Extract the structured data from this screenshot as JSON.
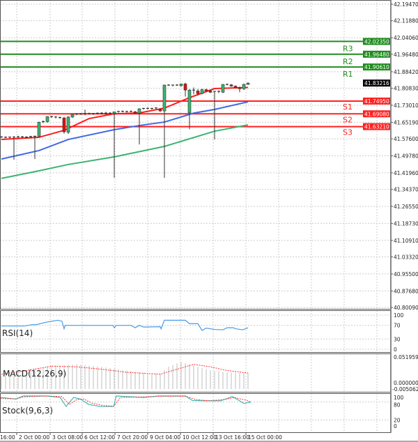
{
  "chart_data": [
    {
      "type": "candlestick",
      "ylim": [
        40.8009,
        42.1947
      ],
      "price_ticks": [
        "42.19470",
        "42.11880",
        "42.04060",
        "41.96480",
        "41.88420",
        "41.80830",
        "41.73010",
        "41.65190",
        "41.57600",
        "41.49780",
        "41.41960",
        "41.34370",
        "41.26550",
        "41.18730",
        "41.10910",
        "41.03320",
        "40.95500",
        "40.87680",
        "40.80090"
      ],
      "time_ticks": [
        "16:00",
        "2 Oct 00:00",
        "3 Oct 08:00",
        "6 Oct 12:00",
        "7 Oct 20:00",
        "9 Oct 04:00",
        "10 Oct 12:00",
        "13 Oct 16:00",
        "15 Oct 00:00"
      ],
      "grid": true,
      "current_price": {
        "value": 41.83216,
        "label": "41.83216",
        "color": "#000000"
      },
      "levels": [
        {
          "name": "R3",
          "value": 42.0235,
          "label": "42.02350",
          "color": "#1e8c1e"
        },
        {
          "name": "R2",
          "value": 41.9648,
          "label": "41.96480",
          "color": "#1e8c1e"
        },
        {
          "name": "R1",
          "value": 41.9061,
          "label": "41.90610",
          "color": "#1e8c1e"
        },
        {
          "name": "S1",
          "value": 41.7495,
          "label": "41.74950",
          "color": "#ff2020"
        },
        {
          "name": "S2",
          "value": 41.6908,
          "label": "41.69080",
          "color": "#ff2020"
        },
        {
          "name": "S3",
          "value": 41.6321,
          "label": "41.63210",
          "color": "#ff2020"
        }
      ],
      "candles": [
        [
          41.585,
          41.588,
          41.58,
          41.583
        ],
        [
          41.583,
          41.587,
          41.579,
          41.582
        ],
        [
          41.582,
          41.586,
          41.578,
          41.584
        ],
        [
          41.584,
          41.588,
          41.48,
          41.582
        ],
        [
          41.582,
          41.59,
          41.578,
          41.585
        ],
        [
          41.585,
          41.589,
          41.58,
          41.583
        ],
        [
          41.583,
          41.587,
          41.579,
          41.584
        ],
        [
          41.584,
          41.59,
          41.58,
          41.586
        ],
        [
          41.586,
          41.59,
          41.483,
          41.588
        ],
        [
          41.588,
          41.655,
          41.585,
          41.652
        ],
        [
          41.652,
          41.66,
          41.648,
          41.655
        ],
        [
          41.655,
          41.68,
          41.65,
          41.678
        ],
        [
          41.678,
          41.682,
          41.672,
          41.676
        ],
        [
          41.676,
          41.68,
          41.67,
          41.674
        ],
        [
          41.674,
          41.678,
          41.668,
          41.672
        ],
        [
          41.672,
          41.676,
          41.6,
          41.608
        ],
        [
          41.606,
          41.68,
          41.598,
          41.676
        ],
        [
          41.676,
          41.69,
          41.672,
          41.688
        ],
        [
          41.688,
          41.692,
          41.684,
          41.69
        ],
        [
          41.69,
          41.694,
          41.686,
          41.688
        ],
        [
          41.688,
          41.71,
          41.684,
          41.692
        ],
        [
          41.692,
          41.696,
          41.688,
          41.69
        ],
        [
          41.69,
          41.694,
          41.686,
          41.692
        ],
        [
          41.692,
          41.696,
          41.688,
          41.694
        ],
        [
          41.694,
          41.698,
          41.688,
          41.69
        ],
        [
          41.69,
          41.7,
          41.686,
          41.694
        ],
        [
          41.694,
          41.698,
          41.69,
          41.692
        ],
        [
          41.692,
          41.696,
          41.397,
          41.7
        ],
        [
          41.7,
          41.704,
          41.696,
          41.702
        ],
        [
          41.702,
          41.706,
          41.698,
          41.7
        ],
        [
          41.7,
          41.704,
          41.696,
          41.702
        ],
        [
          41.702,
          41.706,
          41.698,
          41.7
        ],
        [
          41.7,
          41.704,
          41.69,
          41.694
        ],
        [
          41.694,
          41.716,
          41.55,
          41.714
        ],
        [
          41.714,
          41.718,
          41.71,
          41.716
        ],
        [
          41.716,
          41.72,
          41.712,
          41.714
        ],
        [
          41.714,
          41.718,
          41.71,
          41.716
        ],
        [
          41.716,
          41.72,
          41.712,
          41.718
        ],
        [
          41.712,
          41.716,
          41.7,
          41.704
        ],
        [
          41.704,
          41.825,
          41.397,
          41.823
        ],
        [
          41.823,
          41.827,
          41.819,
          41.821
        ],
        [
          41.821,
          41.825,
          41.817,
          41.823
        ],
        [
          41.823,
          41.827,
          41.819,
          41.822
        ],
        [
          41.82,
          41.83,
          41.816,
          41.828
        ],
        [
          41.828,
          41.834,
          41.77,
          41.8
        ],
        [
          41.695,
          41.804,
          41.62,
          41.8
        ],
        [
          41.8,
          41.812,
          41.78,
          41.796
        ],
        [
          41.796,
          41.805,
          41.775,
          41.784
        ],
        [
          41.784,
          41.806,
          41.78,
          41.802
        ],
        [
          41.802,
          41.806,
          41.792,
          41.796
        ],
        [
          41.796,
          41.8,
          41.786,
          41.79
        ],
        [
          41.79,
          41.794,
          41.573,
          41.794
        ],
        [
          41.794,
          41.798,
          41.786,
          41.79
        ],
        [
          41.79,
          41.828,
          41.786,
          41.826
        ],
        [
          41.826,
          41.83,
          41.822,
          41.824
        ],
        [
          41.824,
          41.828,
          41.816,
          41.818
        ],
        [
          41.818,
          41.822,
          41.808,
          41.812
        ],
        [
          41.812,
          41.816,
          41.79,
          41.806
        ],
        [
          41.806,
          41.83,
          41.8,
          41.826
        ],
        [
          41.826,
          41.836,
          41.824,
          41.832
        ]
      ],
      "moving_averages": [
        {
          "color": "#ff1a1a",
          "points": [
            [
              0,
              41.573
            ],
            [
              9,
              41.583
            ],
            [
              15,
              41.615
            ],
            [
              21,
              41.669
            ],
            [
              27,
              41.691
            ],
            [
              33,
              41.695
            ],
            [
              39,
              41.717
            ],
            [
              45,
              41.765
            ],
            [
              51,
              41.807
            ],
            [
              59,
              41.812
            ]
          ]
        },
        {
          "color": "#4169e1",
          "points": [
            [
              0,
              41.483
            ],
            [
              9,
              41.522
            ],
            [
              16,
              41.573
            ],
            [
              27,
              41.618
            ],
            [
              33,
              41.637
            ],
            [
              39,
              41.653
            ],
            [
              46,
              41.694
            ],
            [
              51,
              41.711
            ],
            [
              59,
              41.746
            ]
          ]
        },
        {
          "color": "#3cb371",
          "points": [
            [
              0,
              41.394
            ],
            [
              9,
              41.429
            ],
            [
              16,
              41.458
            ],
            [
              27,
              41.493
            ],
            [
              39,
              41.541
            ],
            [
              51,
              41.611
            ],
            [
              59,
              41.64
            ]
          ]
        }
      ]
    },
    {
      "type": "line",
      "label": "RSI(14)",
      "ylim": [
        0,
        100
      ],
      "ticks": [
        "100",
        "70",
        "30",
        "0"
      ],
      "color": "#4a9be8",
      "points": [
        [
          0,
          68
        ],
        [
          5.5,
          68
        ],
        [
          7.3,
          72
        ],
        [
          8.3,
          72
        ],
        [
          11,
          80
        ],
        [
          13.5,
          85
        ],
        [
          14.5,
          82
        ],
        [
          15,
          60
        ],
        [
          15.3,
          70
        ],
        [
          19,
          70
        ],
        [
          26.7,
          70
        ],
        [
          27,
          63
        ],
        [
          27.5,
          70
        ],
        [
          31,
          70
        ],
        [
          32,
          63
        ],
        [
          33,
          70
        ],
        [
          34,
          65
        ],
        [
          38,
          66
        ],
        [
          38.2,
          60
        ],
        [
          39,
          85
        ],
        [
          44,
          85
        ],
        [
          45,
          75
        ],
        [
          47,
          75
        ],
        [
          48,
          55
        ],
        [
          49,
          62
        ],
        [
          51,
          58
        ],
        [
          53,
          57
        ],
        [
          54,
          63
        ],
        [
          55.5,
          63
        ],
        [
          56,
          60
        ],
        [
          57.7,
          57
        ],
        [
          59,
          63
        ]
      ]
    },
    {
      "type": "bar",
      "label": "MACD(12,26,9)",
      "ticks": [
        "0.051959",
        "0.000000",
        "-0.005062"
      ],
      "ylim": [
        0,
        0.051959
      ],
      "histogram_color": "#c8c8c8",
      "signal_color": "#ff3030",
      "histogram": [
        [
          0,
          0.021
        ],
        [
          6,
          0.03
        ],
        [
          12,
          0.038
        ],
        [
          18,
          0.04
        ],
        [
          24,
          0.036
        ],
        [
          30,
          0.03
        ],
        [
          36,
          0.024
        ],
        [
          38,
          0.025
        ],
        [
          40,
          0.036
        ],
        [
          43,
          0.044
        ],
        [
          46,
          0.038
        ],
        [
          50,
          0.03
        ],
        [
          54,
          0.027
        ],
        [
          59,
          0.026
        ]
      ],
      "signal": [
        [
          0,
          0.024
        ],
        [
          6,
          0.03
        ],
        [
          12,
          0.037
        ],
        [
          18,
          0.036
        ],
        [
          24,
          0.032
        ],
        [
          30,
          0.027
        ],
        [
          38,
          0.024
        ],
        [
          42,
          0.032
        ],
        [
          46,
          0.04
        ],
        [
          50,
          0.036
        ],
        [
          54,
          0.03
        ],
        [
          59,
          0.026
        ]
      ]
    },
    {
      "type": "line",
      "label": "Stock(9,6,3)",
      "ylim": [
        0,
        100
      ],
      "ticks": [
        "100",
        "80",
        "20",
        "0"
      ],
      "main_color": "#3fb8af",
      "signal_color": "#ff3030",
      "main": [
        [
          0,
          95
        ],
        [
          9.5,
          90
        ],
        [
          14,
          100
        ],
        [
          28,
          100
        ],
        [
          36,
          95
        ],
        [
          39.5,
          65
        ],
        [
          44,
          95
        ],
        [
          48,
          90
        ],
        [
          53,
          72
        ],
        [
          60,
          65
        ],
        [
          68,
          65
        ],
        [
          69.5,
          100
        ],
        [
          86,
          95
        ],
        [
          95,
          100
        ],
        [
          111,
          100
        ],
        [
          115,
          85
        ],
        [
          123,
          84
        ],
        [
          132,
          84
        ],
        [
          139,
          98
        ],
        [
          146,
          75
        ],
        [
          150,
          80
        ]
      ],
      "signal": [
        [
          0,
          92
        ],
        [
          9.5,
          90
        ],
        [
          14,
          97
        ],
        [
          28,
          100
        ],
        [
          37,
          98
        ],
        [
          41.5,
          72
        ],
        [
          46,
          88
        ],
        [
          50,
          90
        ],
        [
          55,
          76
        ],
        [
          62,
          68
        ],
        [
          68,
          66
        ],
        [
          72,
          95
        ],
        [
          86,
          97
        ],
        [
          95,
          99
        ],
        [
          111,
          99
        ],
        [
          117,
          88
        ],
        [
          125,
          84
        ],
        [
          134,
          88
        ],
        [
          140,
          95
        ],
        [
          147,
          86
        ],
        [
          150,
          80
        ]
      ]
    }
  ]
}
